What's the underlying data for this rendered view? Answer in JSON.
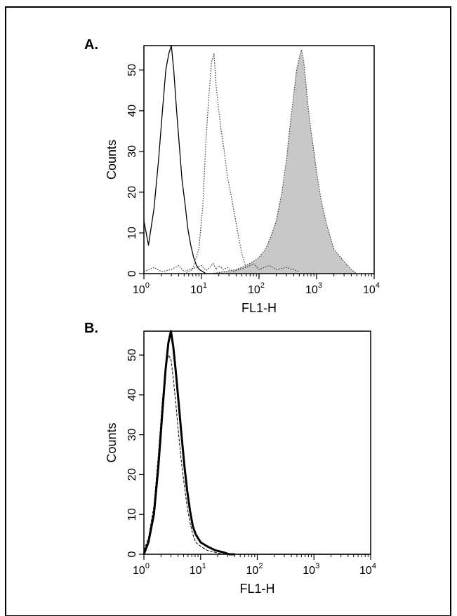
{
  "chart_data": [
    {
      "panel_label": "A.",
      "type": "area",
      "xlabel": "FL1-H",
      "ylabel": "Counts",
      "x_scale": "log",
      "xlim": [
        1,
        10000
      ],
      "ylim": [
        0,
        56
      ],
      "x_ticks": [
        {
          "value": 1,
          "base": "10",
          "exp": "0"
        },
        {
          "value": 10,
          "base": "10",
          "exp": "1"
        },
        {
          "value": 100,
          "base": "10",
          "exp": "2"
        },
        {
          "value": 1000,
          "base": "10",
          "exp": "3"
        },
        {
          "value": 10000,
          "base": "10",
          "exp": "4"
        }
      ],
      "y_ticks": [
        0,
        10,
        20,
        30,
        40,
        50
      ],
      "grid": false,
      "legend": "none",
      "series": [
        {
          "line_style": "solid",
          "fill": "none",
          "x": [
            1,
            1.2,
            1.5,
            1.8,
            2.1,
            2.4,
            2.7,
            3.0,
            3.3,
            3.7,
            4.1,
            4.6,
            5.2,
            5.8,
            6.5,
            7.3,
            8.2,
            9.2,
            10.5,
            12
          ],
          "y": [
            13,
            7,
            16,
            28,
            40,
            50,
            54,
            56,
            50,
            40,
            32,
            23,
            17,
            11,
            7,
            4,
            2,
            1,
            0.5,
            0
          ]
        },
        {
          "line_style": "dotted",
          "fill": "none",
          "x": [
            5,
            7,
            9,
            10.5,
            12,
            13.5,
            15,
            16.5,
            18,
            20,
            22,
            25,
            28,
            32,
            37,
            43,
            50,
            58,
            65
          ],
          "y": [
            0,
            1,
            6,
            16,
            33,
            44,
            52,
            54,
            46,
            40,
            35,
            30,
            24,
            20,
            15,
            10,
            5,
            2,
            0
          ]
        },
        {
          "line_style": "dotted",
          "fill": "#c8c8c8",
          "x": [
            15,
            25,
            40,
            60,
            80,
            100,
            130,
            160,
            200,
            250,
            300,
            350,
            400,
            450,
            500,
            550,
            600,
            700,
            800,
            900,
            1000,
            1200,
            1500,
            2000,
            3000,
            4000,
            5000
          ],
          "y": [
            0,
            0.5,
            1,
            2,
            3,
            4,
            6,
            9,
            13,
            20,
            28,
            37,
            44,
            50,
            53,
            55,
            52,
            42,
            35,
            30,
            25,
            18,
            12,
            6,
            3,
            1,
            0
          ]
        },
        {
          "line_style": "dotted",
          "fill": "none",
          "x": [
            1,
            1.5,
            2,
            3,
            4,
            5,
            6,
            8,
            10,
            12,
            14,
            16,
            18,
            20,
            24,
            28,
            35,
            45,
            60,
            80,
            100,
            150,
            200,
            300,
            500
          ],
          "y": [
            0.5,
            1.5,
            0.5,
            1,
            2,
            0.5,
            1,
            1.5,
            2,
            0.8,
            1.6,
            2.5,
            1,
            2,
            1,
            1.5,
            0.5,
            1,
            1.5,
            2.5,
            1,
            2,
            1,
            1.5,
            0.5
          ]
        }
      ]
    },
    {
      "panel_label": "B.",
      "type": "line",
      "xlabel": "FL1-H",
      "ylabel": "Counts",
      "x_scale": "log",
      "xlim": [
        1,
        10000
      ],
      "ylim": [
        0,
        56
      ],
      "x_ticks": [
        {
          "value": 1,
          "base": "10",
          "exp": "0"
        },
        {
          "value": 10,
          "base": "10",
          "exp": "1"
        },
        {
          "value": 100,
          "base": "10",
          "exp": "2"
        },
        {
          "value": 1000,
          "base": "10",
          "exp": "3"
        },
        {
          "value": 10000,
          "base": "10",
          "exp": "4"
        }
      ],
      "y_ticks": [
        0,
        10,
        20,
        30,
        40,
        50
      ],
      "grid": false,
      "legend": "none",
      "series": [
        {
          "line_style": "solid-thick",
          "fill": "none",
          "x": [
            1,
            1.2,
            1.5,
            1.8,
            2.1,
            2.4,
            2.7,
            3.0,
            3.3,
            3.7,
            4.1,
            4.6,
            5.2,
            5.8,
            6.5,
            7.3,
            8.2,
            10,
            13,
            18,
            25,
            32,
            40
          ],
          "y": [
            0,
            3,
            10,
            22,
            35,
            46,
            53,
            56,
            52,
            45,
            38,
            30,
            22,
            16,
            11,
            7,
            5,
            3,
            2,
            1,
            0.5,
            0,
            0
          ]
        },
        {
          "line_style": "dashed",
          "fill": "none",
          "x": [
            1,
            1.2,
            1.5,
            1.8,
            2.1,
            2.4,
            2.7,
            3.0,
            3.3,
            3.7,
            4.1,
            4.6,
            5.2,
            5.8,
            6.5,
            7.3,
            8.2,
            10,
            13,
            18,
            25
          ],
          "y": [
            1,
            4,
            12,
            25,
            38,
            47,
            50,
            49,
            44,
            37,
            30,
            23,
            17,
            12,
            8,
            5,
            3,
            2,
            1,
            0.5,
            0
          ]
        },
        {
          "line_style": "solid",
          "fill": "none",
          "x": [
            40,
            10000
          ],
          "y": [
            0,
            0
          ]
        }
      ]
    }
  ]
}
